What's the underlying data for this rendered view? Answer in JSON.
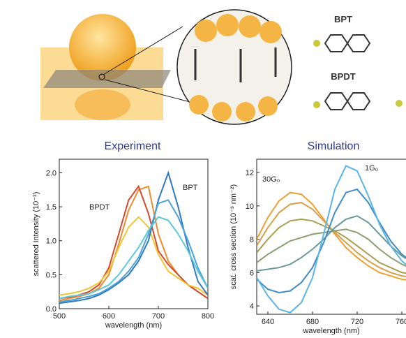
{
  "illustration": {
    "labels": [
      "BPT",
      "BPDT"
    ]
  },
  "chart_data": [
    {
      "type": "line",
      "title": "Experiment",
      "x_label": "wavelength (nm)",
      "y_label": "scattered intensity (10⁻³)",
      "annotations": [
        "BPDT",
        "BPT"
      ],
      "x": [
        500,
        520,
        540,
        560,
        580,
        600,
        620,
        640,
        660,
        680,
        700,
        720,
        740,
        760,
        780,
        800
      ],
      "xlim": [
        500,
        800
      ],
      "xticks": [
        500,
        600,
        700,
        800
      ],
      "ylim": [
        0,
        2.2
      ],
      "yticks": [
        {
          "value": 0,
          "label": "0.0"
        },
        0.5,
        {
          "value": 1,
          "label": "1.0"
        },
        1.5,
        {
          "value": 2,
          "label": "2.0"
        }
      ],
      "series": [
        {
          "color": "#f08a2c",
          "values": [
            0.12,
            0.15,
            0.18,
            0.22,
            0.3,
            0.5,
            0.95,
            1.45,
            1.75,
            1.8,
            1.1,
            0.7,
            0.5,
            0.35,
            0.25,
            0.15
          ]
        },
        {
          "color": "#d9482a",
          "values": [
            0.15,
            0.17,
            0.2,
            0.25,
            0.35,
            0.6,
            1.1,
            1.6,
            1.8,
            1.4,
            0.85,
            0.65,
            0.5,
            0.35,
            0.25,
            0.15
          ]
        },
        {
          "color": "#f2c531",
          "values": [
            0.2,
            0.22,
            0.25,
            0.3,
            0.38,
            0.55,
            0.9,
            1.2,
            1.35,
            1.2,
            0.8,
            0.55,
            0.45,
            0.35,
            0.3,
            0.2
          ]
        },
        {
          "color": "#2f78c4",
          "values": [
            0.08,
            0.1,
            0.12,
            0.15,
            0.2,
            0.28,
            0.38,
            0.5,
            0.7,
            1.0,
            1.6,
            2.0,
            1.5,
            0.9,
            0.4,
            0.2
          ]
        },
        {
          "color": "#4aa3dc",
          "values": [
            0.1,
            0.12,
            0.15,
            0.18,
            0.22,
            0.3,
            0.4,
            0.55,
            0.75,
            1.1,
            1.55,
            1.6,
            1.35,
            1.0,
            0.6,
            0.3
          ]
        },
        {
          "color": "#5cc9d6",
          "values": [
            0.15,
            0.18,
            0.2,
            0.22,
            0.28,
            0.35,
            0.5,
            0.7,
            0.9,
            1.15,
            1.35,
            1.3,
            1.1,
            0.85,
            0.55,
            0.3
          ]
        }
      ]
    },
    {
      "type": "line",
      "title": "Simulation",
      "x_label": "wavelength (nm)",
      "y_label": "scat. cross section (10⁻³ nm⁻²)",
      "annotations": [
        "30G₀",
        "1G₀"
      ],
      "x": [
        630,
        640,
        650,
        660,
        670,
        680,
        690,
        700,
        710,
        720,
        730,
        740,
        750,
        760,
        770
      ],
      "xlim": [
        630,
        775
      ],
      "xticks": [
        640,
        680,
        720,
        760
      ],
      "ylim": [
        3.5,
        12.8
      ],
      "yticks": [
        4,
        6,
        8,
        10,
        12
      ],
      "series": [
        {
          "color": "#f0a030",
          "values": [
            8.0,
            9.3,
            10.3,
            10.8,
            10.7,
            10.1,
            9.2,
            8.3,
            7.5,
            6.9,
            6.4,
            6.0,
            5.8,
            5.6,
            5.5
          ]
        },
        {
          "color": "#d9a048",
          "values": [
            7.6,
            8.7,
            9.6,
            10.1,
            10.2,
            9.8,
            9.1,
            8.4,
            7.8,
            7.2,
            6.7,
            6.3,
            6.0,
            5.8,
            5.7
          ]
        },
        {
          "color": "#a8a050",
          "values": [
            7.2,
            8.0,
            8.7,
            9.1,
            9.2,
            9.1,
            8.8,
            8.5,
            8.1,
            7.6,
            7.1,
            6.6,
            6.3,
            6.0,
            5.9
          ]
        },
        {
          "color": "#88a070",
          "values": [
            6.6,
            7.1,
            7.5,
            7.9,
            8.1,
            8.3,
            8.4,
            8.5,
            8.6,
            8.4,
            8.0,
            7.4,
            6.9,
            6.5,
            6.2
          ]
        },
        {
          "color": "#6a9a98",
          "values": [
            6.1,
            6.2,
            6.3,
            6.5,
            6.9,
            7.4,
            8.0,
            8.7,
            9.2,
            9.4,
            9.0,
            8.3,
            7.6,
            7.0,
            6.6
          ]
        },
        {
          "color": "#3f8cc8",
          "values": [
            5.6,
            5.0,
            4.8,
            4.9,
            5.4,
            6.3,
            7.8,
            9.6,
            10.8,
            11.0,
            10.2,
            9.0,
            7.9,
            7.1,
            6.6
          ]
        },
        {
          "color": "#5ab4e6",
          "values": [
            5.7,
            4.6,
            3.8,
            3.6,
            4.2,
            5.7,
            8.3,
            11.0,
            12.4,
            12.1,
            10.6,
            8.9,
            7.6,
            6.7,
            6.1
          ]
        }
      ]
    }
  ]
}
